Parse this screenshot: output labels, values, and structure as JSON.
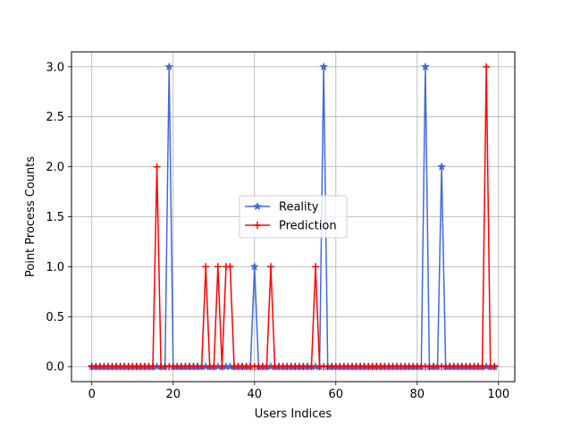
{
  "chart_data": {
    "type": "line",
    "title": "",
    "xlabel": "Users Indices",
    "ylabel": "Point Process Counts",
    "xlim": [
      -5,
      104
    ],
    "ylim": [
      -0.15,
      3.15
    ],
    "x_ticks": [
      0,
      20,
      40,
      60,
      80,
      100
    ],
    "y_ticks": [
      0.0,
      0.5,
      1.0,
      1.5,
      2.0,
      2.5,
      3.0
    ],
    "x_tick_labels": [
      "0",
      "20",
      "40",
      "60",
      "80",
      "100"
    ],
    "y_tick_labels": [
      "0.0",
      "0.5",
      "1.0",
      "1.5",
      "2.0",
      "2.5",
      "3.0"
    ],
    "grid": true,
    "legend_position": "center",
    "x": [
      0,
      1,
      2,
      3,
      4,
      5,
      6,
      7,
      8,
      9,
      10,
      11,
      12,
      13,
      14,
      15,
      16,
      17,
      18,
      19,
      20,
      21,
      22,
      23,
      24,
      25,
      26,
      27,
      28,
      29,
      30,
      31,
      32,
      33,
      34,
      35,
      36,
      37,
      38,
      39,
      40,
      41,
      42,
      43,
      44,
      45,
      46,
      47,
      48,
      49,
      50,
      51,
      52,
      53,
      54,
      55,
      56,
      57,
      58,
      59,
      60,
      61,
      62,
      63,
      64,
      65,
      66,
      67,
      68,
      69,
      70,
      71,
      72,
      73,
      74,
      75,
      76,
      77,
      78,
      79,
      80,
      81,
      82,
      83,
      84,
      85,
      86,
      87,
      88,
      89,
      90,
      91,
      92,
      93,
      94,
      95,
      96,
      97,
      98,
      99
    ],
    "series": [
      {
        "name": "Reality",
        "color": "#4169E1",
        "marker": "star",
        "values": [
          0,
          0,
          0,
          0,
          0,
          0,
          0,
          0,
          0,
          0,
          0,
          0,
          0,
          0,
          0,
          0,
          0,
          0,
          0,
          3,
          0,
          0,
          0,
          0,
          0,
          0,
          0,
          0,
          0,
          0,
          0,
          0,
          0,
          0,
          0,
          0,
          0,
          0,
          0,
          0,
          1,
          0,
          0,
          0,
          0,
          0,
          0,
          0,
          0,
          0,
          0,
          0,
          0,
          0,
          0,
          0,
          0,
          3,
          0,
          0,
          0,
          0,
          0,
          0,
          0,
          0,
          0,
          0,
          0,
          0,
          0,
          0,
          0,
          0,
          0,
          0,
          0,
          0,
          0,
          0,
          0,
          0,
          3,
          0,
          0,
          0,
          2,
          0,
          0,
          0,
          0,
          0,
          0,
          0,
          0,
          0,
          0,
          0,
          0,
          0
        ]
      },
      {
        "name": "Prediction",
        "color": "#FF0000",
        "marker": "plus",
        "values": [
          0,
          0,
          0,
          0,
          0,
          0,
          0,
          0,
          0,
          0,
          0,
          0,
          0,
          0,
          0,
          0,
          2,
          0,
          0,
          0,
          0,
          0,
          0,
          0,
          0,
          0,
          0,
          0,
          1,
          0,
          0,
          1,
          0,
          1,
          1,
          0,
          0,
          0,
          0,
          0,
          0,
          0,
          0,
          0,
          1,
          0,
          0,
          0,
          0,
          0,
          0,
          0,
          0,
          0,
          0,
          1,
          0,
          0,
          0,
          0,
          0,
          0,
          0,
          0,
          0,
          0,
          0,
          0,
          0,
          0,
          0,
          0,
          0,
          0,
          0,
          0,
          0,
          0,
          0,
          0,
          0,
          0,
          0,
          0,
          0,
          0,
          0,
          0,
          0,
          0,
          0,
          0,
          0,
          0,
          0,
          0,
          0,
          3,
          0,
          0
        ]
      }
    ]
  }
}
